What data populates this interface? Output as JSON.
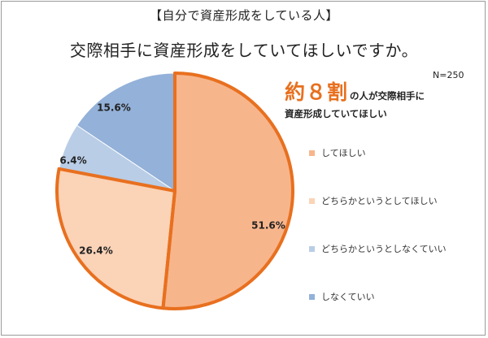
{
  "header": {
    "category": "【自分で資産形成をしている人】",
    "question": "交際相手に資産形成をしていてほしいですか。"
  },
  "sample_size": "N=250",
  "callout": {
    "highlight": "約８割",
    "line1": "の人が交際相手に",
    "line2": "資産形成していてほしい"
  },
  "colors": {
    "accent": "#e8701f",
    "slice_edge": "#ffffff"
  },
  "chart_data": {
    "type": "pie",
    "title": "交際相手に資産形成をしていてほしいですか。",
    "start_angle": "12 o'clock, clockwise",
    "legend_position": "right",
    "categories": [
      "してほしい",
      "どちらかというとしてほしい",
      "どちらかというとしなくていい",
      "しなくていい"
    ],
    "values": [
      51.6,
      26.4,
      6.4,
      15.6
    ],
    "labels": [
      "51.6%",
      "26.4%",
      "6.4%",
      "15.6%"
    ],
    "colors": [
      "#f7b58c",
      "#fbd3b7",
      "#b9cde6",
      "#93b1d9"
    ],
    "highlighted_slices": [
      "してほしい",
      "どちらかというとしてほしい"
    ]
  }
}
